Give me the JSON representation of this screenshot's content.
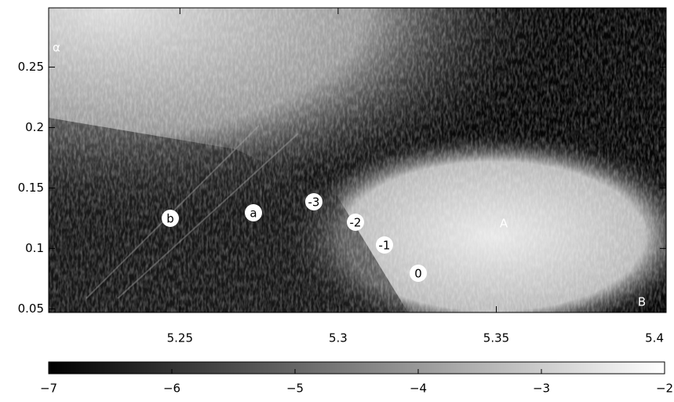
{
  "chart_data": {
    "type": "heatmap",
    "xlim": [
      5.2085,
      5.4037
    ],
    "xticks": [
      5.25,
      5.3,
      5.35,
      5.4
    ],
    "ylim": [
      0.047,
      0.299
    ],
    "yticks": [
      0.05,
      0.1,
      0.15,
      0.2,
      0.25
    ],
    "colorbar": {
      "lim": [
        -7,
        -2
      ],
      "ticks": [
        {
          "value": -7,
          "label": "−7"
        },
        {
          "value": -6,
          "label": "−6"
        },
        {
          "value": -5,
          "label": "−5"
        },
        {
          "value": -4,
          "label": "−4"
        },
        {
          "value": -3,
          "label": "−3"
        },
        {
          "value": -2,
          "label": "−2"
        }
      ]
    },
    "annotations": [
      "α",
      "b",
      "a",
      "-3",
      "-2",
      "-1",
      "0",
      "A",
      "B"
    ]
  }
}
